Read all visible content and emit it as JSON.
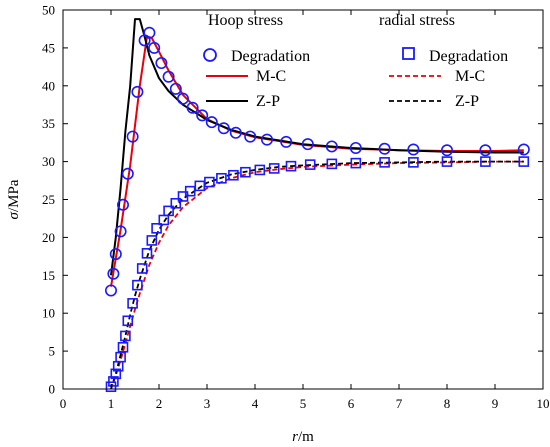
{
  "chart_data": {
    "type": "line",
    "xlabel_italic": "r",
    "xlabel_unit": "/m",
    "ylabel_italic": "σ",
    "ylabel_unit": "/MPa",
    "xlim": [
      0,
      10
    ],
    "ylim": [
      0,
      50
    ],
    "xticks": [
      0,
      1,
      2,
      3,
      4,
      5,
      6,
      7,
      8,
      9,
      10
    ],
    "yticks": [
      0,
      5,
      10,
      15,
      20,
      25,
      30,
      35,
      40,
      45,
      50
    ],
    "grid": false,
    "legend_position": "top-right",
    "legend": {
      "hoop_header": "Hoop stress",
      "radial_header": "radial stress",
      "degradation": "Degradation",
      "mc": "M-C",
      "zp": "Z-P"
    },
    "colors": {
      "degradation": "#1a1aff",
      "mc": "#e8000b",
      "zp": "#000000"
    },
    "series": [
      {
        "group": "hoop",
        "method": "degradation",
        "style": "circle-markers",
        "x": [
          1.0,
          1.05,
          1.1,
          1.2,
          1.25,
          1.35,
          1.45,
          1.55,
          1.7,
          1.8,
          1.9,
          2.05,
          2.2,
          2.35,
          2.5,
          2.7,
          2.9,
          3.1,
          3.35,
          3.6,
          3.9,
          4.25,
          4.65,
          5.1,
          5.6,
          6.1,
          6.7,
          7.3,
          8.0,
          8.8,
          9.6
        ],
        "y": [
          13.0,
          15.2,
          17.8,
          20.8,
          24.3,
          28.4,
          33.3,
          39.2,
          46.0,
          47.0,
          45.0,
          43.0,
          41.2,
          39.6,
          38.3,
          37.1,
          36.1,
          35.2,
          34.4,
          33.8,
          33.3,
          32.9,
          32.6,
          32.3,
          32.0,
          31.8,
          31.7,
          31.6,
          31.5,
          31.5,
          31.6
        ]
      },
      {
        "group": "hoop",
        "method": "mc",
        "style": "solid-line",
        "x": [
          1.0,
          1.2,
          1.4,
          1.6,
          1.75,
          1.85,
          2.0,
          2.2,
          2.5,
          3.0,
          3.5,
          4.0,
          5.0,
          6.0,
          7.0,
          8.0,
          9.0,
          9.6
        ],
        "y": [
          13.5,
          21.0,
          29.5,
          40.0,
          46.5,
          46.3,
          44.5,
          42.0,
          38.8,
          35.6,
          34.1,
          33.2,
          32.2,
          31.7,
          31.5,
          31.4,
          31.4,
          31.5
        ]
      },
      {
        "group": "hoop",
        "method": "zp",
        "style": "solid-line",
        "x": [
          1.0,
          1.1,
          1.2,
          1.3,
          1.4,
          1.5,
          1.6,
          1.7,
          1.8,
          2.0,
          2.2,
          2.5,
          3.0,
          3.5,
          4.0,
          5.0,
          6.0,
          7.0,
          8.0,
          9.0,
          9.6
        ],
        "y": [
          15.0,
          20.0,
          26.5,
          34.0,
          40.0,
          48.8,
          48.8,
          46.5,
          44.0,
          41.0,
          39.3,
          37.5,
          35.5,
          34.2,
          33.3,
          32.3,
          31.8,
          31.5,
          31.3,
          31.2,
          31.2
        ]
      },
      {
        "group": "radial",
        "method": "degradation",
        "style": "square-markers",
        "x": [
          1.0,
          1.05,
          1.1,
          1.15,
          1.2,
          1.25,
          1.3,
          1.35,
          1.45,
          1.55,
          1.65,
          1.75,
          1.85,
          1.95,
          2.1,
          2.2,
          2.35,
          2.5,
          2.65,
          2.85,
          3.05,
          3.3,
          3.55,
          3.8,
          4.1,
          4.4,
          4.75,
          5.15,
          5.6,
          6.1,
          6.7,
          7.3,
          8.0,
          8.8,
          9.6
        ],
        "y": [
          0.3,
          1.0,
          2.0,
          3.0,
          4.2,
          5.5,
          7.0,
          9.0,
          11.3,
          13.7,
          15.9,
          17.9,
          19.6,
          21.2,
          22.3,
          23.5,
          24.5,
          25.4,
          26.1,
          26.8,
          27.3,
          27.8,
          28.2,
          28.6,
          28.9,
          29.1,
          29.4,
          29.6,
          29.7,
          29.8,
          29.9,
          29.9,
          30.0,
          30.0,
          30.0
        ]
      },
      {
        "group": "radial",
        "method": "mc",
        "style": "dashed-line",
        "x": [
          1.0,
          1.1,
          1.2,
          1.3,
          1.4,
          1.5,
          1.6,
          1.8,
          2.0,
          2.2,
          2.5,
          3.0,
          3.5,
          4.0,
          4.5,
          5.0,
          6.0,
          7.0,
          8.0,
          9.0,
          9.6
        ],
        "y": [
          0.0,
          1.8,
          3.8,
          6.0,
          8.3,
          10.5,
          12.6,
          16.4,
          19.3,
          21.6,
          24.0,
          26.5,
          27.8,
          28.6,
          29.0,
          29.3,
          29.6,
          29.8,
          29.9,
          30.0,
          30.0
        ]
      },
      {
        "group": "radial",
        "method": "zp",
        "style": "dashed-line",
        "x": [
          1.0,
          1.1,
          1.2,
          1.3,
          1.4,
          1.5,
          1.6,
          1.8,
          2.0,
          2.2,
          2.5,
          3.0,
          3.5,
          4.0,
          4.5,
          5.0,
          6.0,
          7.0,
          8.0,
          9.0,
          9.6
        ],
        "y": [
          0.0,
          2.0,
          4.5,
          7.0,
          9.8,
          12.3,
          14.5,
          18.3,
          21.0,
          23.0,
          25.1,
          27.2,
          28.3,
          28.9,
          29.3,
          29.5,
          29.8,
          29.9,
          30.0,
          30.0,
          30.0
        ]
      }
    ]
  }
}
